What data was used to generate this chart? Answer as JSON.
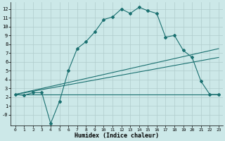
{
  "xlabel": "Humidex (Indice chaleur)",
  "background_color": "#cce8e8",
  "grid_color": "#b0cccc",
  "line_color": "#1a7070",
  "xlim": [
    -0.5,
    23.5
  ],
  "ylim": [
    -1.2,
    12.8
  ],
  "xticks": [
    0,
    1,
    2,
    3,
    4,
    5,
    6,
    7,
    8,
    9,
    10,
    11,
    12,
    13,
    14,
    15,
    16,
    17,
    18,
    19,
    20,
    21,
    22,
    23
  ],
  "yticks": [
    0,
    1,
    2,
    3,
    4,
    5,
    6,
    7,
    8,
    9,
    10,
    11,
    12
  ],
  "ytick_labels": [
    "-0",
    "1",
    "2",
    "3",
    "4",
    "5",
    "6",
    "7",
    "8",
    "9",
    "10",
    "11",
    "12"
  ],
  "line1_x": [
    0,
    1,
    2,
    3,
    4,
    5,
    6,
    7,
    8,
    9,
    10,
    11,
    12,
    13,
    14,
    15,
    16,
    17,
    18,
    19,
    20,
    21,
    22,
    23
  ],
  "line1_y": [
    2.3,
    2.2,
    2.5,
    2.5,
    -1.0,
    1.5,
    5.0,
    7.5,
    8.3,
    9.4,
    10.8,
    11.1,
    12.0,
    11.5,
    12.2,
    11.8,
    11.5,
    8.8,
    9.0,
    7.3,
    6.5,
    3.8,
    2.3,
    2.3
  ],
  "line2_x": [
    0,
    23
  ],
  "line2_y": [
    2.3,
    7.5
  ],
  "line3_x": [
    0,
    23
  ],
  "line3_y": [
    2.3,
    2.3
  ],
  "line4_x": [
    0,
    23
  ],
  "line4_y": [
    2.3,
    6.5
  ]
}
